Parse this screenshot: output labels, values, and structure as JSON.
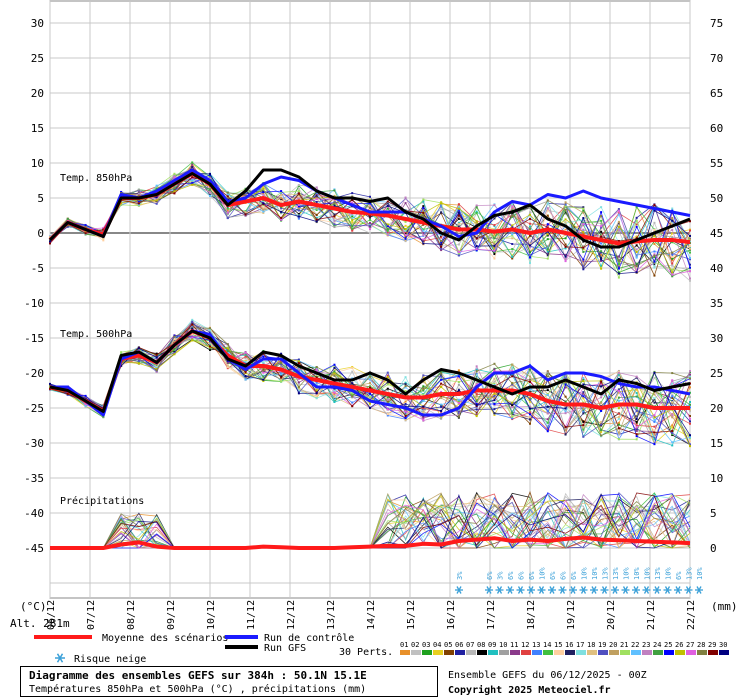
{
  "chart_data": {
    "type": "line",
    "left_axis_unit": "(°C)",
    "right_axis_unit": "(mm)",
    "left_ticks": [
      30,
      25,
      20,
      15,
      10,
      5,
      0,
      -5,
      -10,
      -15,
      -20,
      -25,
      -30,
      -35,
      -40,
      -45
    ],
    "right_ticks": [
      75,
      70,
      65,
      60,
      55,
      50,
      45,
      40,
      35,
      30,
      25,
      20,
      15,
      10,
      5,
      0
    ],
    "ylim": [
      -45,
      30
    ],
    "precip_ylim": [
      0,
      75
    ],
    "x_labels": [
      "06/12",
      "07/12",
      "08/12",
      "09/12",
      "10/12",
      "11/12",
      "12/12",
      "13/12",
      "14/12",
      "15/12",
      "16/12",
      "17/12",
      "18/12",
      "19/12",
      "20/12",
      "21/12",
      "22/12"
    ],
    "altitude_label": "Alt. 281m",
    "label_850": "Temp. 850hPa",
    "label_500": "Temp. 500hPa",
    "label_precip": "Précipitations",
    "series": [
      {
        "name": "Moyenne des scénarios",
        "color": "#ff1a1a",
        "panel": "t850",
        "values": [
          -1,
          1.5,
          0.5,
          -0.2,
          5,
          5,
          5.5,
          7,
          8.5,
          7,
          4,
          4.5,
          5,
          4,
          4.5,
          4,
          3.5,
          3,
          2.8,
          2.5,
          2,
          1.5,
          1,
          0.5,
          0.5,
          0.2,
          0.5,
          0,
          0.5,
          0,
          -0.5,
          -1,
          -1.5,
          -1.2,
          -1,
          -1,
          -1.3
        ]
      },
      {
        "name": "Run de contrôle",
        "color": "#1a1aff",
        "panel": "t850",
        "values": [
          -1,
          1.5,
          0.5,
          -0.5,
          5.5,
          5,
          6,
          7.5,
          9,
          7.5,
          4.5,
          5,
          7,
          8,
          7.5,
          6,
          5,
          4,
          3,
          3,
          3,
          2,
          1,
          -0.5,
          0,
          3,
          4.5,
          4,
          5.5,
          5,
          6,
          5,
          4.5,
          4,
          3.5,
          3,
          2.5
        ]
      },
      {
        "name": "Run GFS",
        "color": "#000000",
        "panel": "t850",
        "values": [
          -1,
          1.5,
          0.5,
          -0.5,
          5,
          5,
          5.5,
          7,
          8.5,
          7,
          4,
          6,
          9,
          9,
          8,
          6,
          5,
          5,
          4.5,
          5,
          3,
          2,
          0,
          -1,
          1,
          2.5,
          3,
          4,
          2,
          1,
          -1,
          -2,
          -2,
          -1,
          0,
          1,
          2
        ]
      },
      {
        "name": "Moyenne des scénarios",
        "color": "#ff1a1a",
        "panel": "t500",
        "values": [
          -22,
          -22.5,
          -24,
          -25.5,
          -18,
          -17.5,
          -18.5,
          -16,
          -14,
          -15,
          -17.5,
          -19,
          -19,
          -19.5,
          -20.5,
          -21,
          -21.5,
          -22,
          -22.5,
          -23,
          -23.5,
          -23.5,
          -23,
          -23,
          -22.5,
          -22.5,
          -22.5,
          -23,
          -24,
          -24.5,
          -24.5,
          -25,
          -24.5,
          -24.5,
          -25,
          -25,
          -25
        ]
      },
      {
        "name": "Run de contrôle",
        "color": "#1a1aff",
        "panel": "t500",
        "values": [
          -22,
          -22,
          -24,
          -26,
          -18,
          -17,
          -18.5,
          -16,
          -14,
          -14.5,
          -18,
          -19.5,
          -18,
          -18,
          -20,
          -22,
          -22,
          -22.5,
          -24,
          -24.5,
          -25,
          -26,
          -26,
          -25,
          -22,
          -20,
          -20,
          -19,
          -21,
          -20,
          -20,
          -20.5,
          -21.5,
          -22,
          -22,
          -22.5,
          -23
        ]
      },
      {
        "name": "Run GFS",
        "color": "#000000",
        "panel": "t500",
        "values": [
          -22,
          -22.5,
          -24,
          -25.5,
          -17.5,
          -17,
          -18.5,
          -16,
          -14,
          -15,
          -18,
          -19,
          -17,
          -17.5,
          -19,
          -20,
          -21,
          -21,
          -20,
          -21,
          -23,
          -21,
          -19.5,
          -20,
          -21,
          -22,
          -23,
          -22,
          -22,
          -21,
          -22,
          -23,
          -21,
          -21.5,
          -22.5,
          -22,
          -21.5
        ]
      },
      {
        "name": "Moyenne des scénarios",
        "color": "#ff1a1a",
        "panel": "precip",
        "values": [
          0,
          0,
          0,
          0,
          0.5,
          0.8,
          0.2,
          0,
          0,
          0,
          0,
          0,
          0.2,
          0.1,
          0,
          0,
          0,
          0.1,
          0.2,
          0.3,
          0.3,
          0.6,
          0.5,
          1,
          1.2,
          1.4,
          1,
          1.2,
          1,
          1.3,
          1.5,
          1.2,
          1.1,
          1,
          0.9,
          0.8,
          0.7
        ]
      }
    ],
    "snow_risk": [
      "3%",
      "6%",
      "3%",
      "6%",
      "6%",
      "6%",
      "10%",
      "6%",
      "6%",
      "6%",
      "10%",
      "10%",
      "13%",
      "13%",
      "10%",
      "10%",
      "10%",
      "13%",
      "10%",
      "6%",
      "13%",
      "10%"
    ],
    "legend": {
      "mean": "Moyenne des scénarios",
      "control": "Run de contrôle",
      "gfs": "Run GFS",
      "snow": "Risque neige",
      "perts": "30 Perts.",
      "pert_numbers": [
        "01",
        "02",
        "03",
        "04",
        "05",
        "06",
        "07",
        "08",
        "09",
        "10",
        "11",
        "12",
        "13",
        "14",
        "15",
        "16",
        "17",
        "18",
        "19",
        "20",
        "21",
        "22",
        "23",
        "24",
        "25",
        "26",
        "27",
        "28",
        "29",
        "30"
      ],
      "pert_colors": [
        "#e8902a",
        "#c0c0c0",
        "#1ea01e",
        "#e8d020",
        "#804000",
        "#2020a0",
        "#b8b8b8",
        "#000000",
        "#20c0c0",
        "#a0a0a0",
        "#8a3a8a",
        "#e04040",
        "#4080ff",
        "#40c040",
        "#ffd0a0",
        "#202060",
        "#80e0e0",
        "#e0c080",
        "#5050c0",
        "#c0a060",
        "#a0e060",
        "#60c0ff",
        "#c080c0",
        "#40a040",
        "#0000ff",
        "#c0c000",
        "#e060e0",
        "#808040",
        "#800000",
        "#000080"
      ]
    }
  },
  "footer": {
    "title": "Diagramme des ensembles GEFS sur 384h : 50.1N 15.1E",
    "subtitle": "Températures 850hPa et 500hPa (°C) , précipitations (mm)",
    "run": "Ensemble GEFS du 06/12/2025 - 00Z",
    "copyright": "Copyright 2025 Meteociel.fr"
  }
}
